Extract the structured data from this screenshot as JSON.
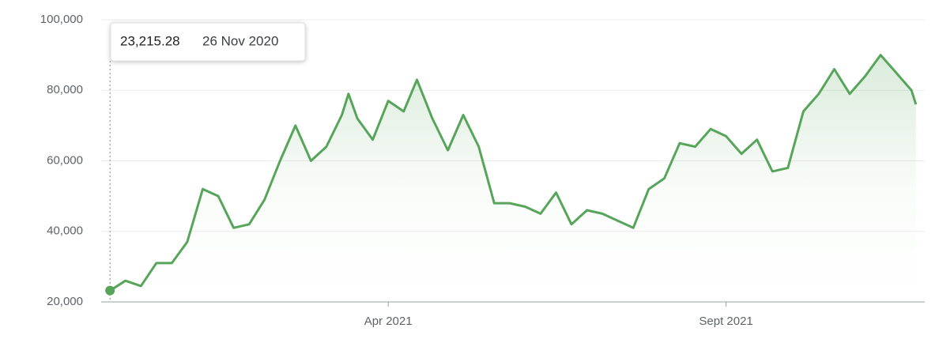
{
  "chart_data": {
    "type": "line",
    "color": "#57a55a",
    "x": [
      "2020-11-26",
      "2020-12-03",
      "2020-12-10",
      "2020-12-17",
      "2020-12-24",
      "2020-12-31",
      "2021-01-07",
      "2021-01-14",
      "2021-01-21",
      "2021-01-28",
      "2021-02-04",
      "2021-02-11",
      "2021-02-18",
      "2021-02-25",
      "2021-03-04",
      "2021-03-11",
      "2021-03-14",
      "2021-03-18",
      "2021-03-25",
      "2021-04-01",
      "2021-04-08",
      "2021-04-14",
      "2021-04-21",
      "2021-04-28",
      "2021-05-05",
      "2021-05-12",
      "2021-05-19",
      "2021-05-26",
      "2021-06-02",
      "2021-06-09",
      "2021-06-16",
      "2021-06-23",
      "2021-06-30",
      "2021-07-07",
      "2021-07-14",
      "2021-07-21",
      "2021-07-28",
      "2021-08-04",
      "2021-08-11",
      "2021-08-18",
      "2021-08-25",
      "2021-09-01",
      "2021-09-08",
      "2021-09-15",
      "2021-09-22",
      "2021-09-29",
      "2021-10-06",
      "2021-10-13",
      "2021-10-20",
      "2021-10-27",
      "2021-11-03",
      "2021-11-10",
      "2021-11-17",
      "2021-11-24",
      "2021-11-26"
    ],
    "values": [
      23215.28,
      26000,
      24500,
      31000,
      31000,
      37000,
      52000,
      50000,
      41000,
      42000,
      49000,
      60000,
      70000,
      60000,
      64000,
      73000,
      79000,
      72000,
      66000,
      77000,
      74000,
      83000,
      72000,
      63000,
      73000,
      64000,
      48000,
      48000,
      47000,
      45000,
      51000,
      42000,
      46000,
      45000,
      43000,
      41000,
      52000,
      55000,
      65000,
      64000,
      69000,
      67000,
      62000,
      66000,
      57000,
      58000,
      74000,
      79000,
      86000,
      79000,
      84000,
      90000,
      85000,
      80000,
      76000
    ],
    "xlim": [
      "2020-11-22",
      "2021-11-30"
    ],
    "xticks": [
      {
        "value": "2021-04-01",
        "label": "Apr 2021"
      },
      {
        "value": "2021-09-01",
        "label": "Sept 2021"
      }
    ],
    "ylim": [
      20000,
      100000
    ],
    "yticks": [
      {
        "value": 20000,
        "label": "20,000"
      },
      {
        "value": 40000,
        "label": "40,000"
      },
      {
        "value": 60000,
        "label": "60,000"
      },
      {
        "value": 80000,
        "label": "80,000"
      },
      {
        "value": 100000,
        "label": "100,000"
      }
    ],
    "grid": true,
    "tooltip": {
      "label": "23,215.28",
      "date": "26 Nov 2020"
    }
  }
}
